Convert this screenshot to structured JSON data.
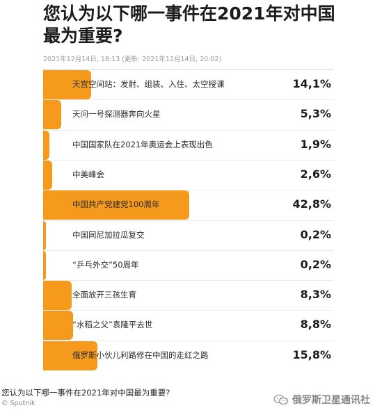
{
  "chart_data": {
    "type": "bar",
    "orientation": "horizontal",
    "title": "您认为以下哪一事件在2021年对中国最为重要?",
    "meta": "2021年12月14日, 18:13 (更新: 2021年12月14日, 20:02)",
    "categories": [
      "天宫空间站：发射、组装、入住、太空授课",
      "天问一号探测器奔向火星",
      "中国国家队在2021年奥运会上表现出色",
      "中美峰会",
      "中国共产党建党100周年",
      "中国同尼加拉瓜复交",
      "“乒乓外交”50周年",
      "全面放开三孩生育",
      "“水稻之父”袁隆平去世",
      "俄罗斯小伙儿利路修在中国的走红之路"
    ],
    "values": [
      14.1,
      5.3,
      1.9,
      2.6,
      42.8,
      0.2,
      0.2,
      8.3,
      8.8,
      15.8
    ],
    "value_labels": [
      "14,1%",
      "5,3%",
      "1,9%",
      "2,6%",
      "42,8%",
      "0,2%",
      "0,2%",
      "8,3%",
      "8,8%",
      "15,8%"
    ],
    "xlim": [
      0,
      42.8
    ],
    "bar_color": "#f59a1d",
    "grid": false,
    "legend": "none"
  },
  "caption": "您认为以下哪一事件在2021年对中国最为重要?",
  "source": "© Sputnik",
  "watermark": "俄罗斯卫星通讯社",
  "icons": {
    "watermark": "wechat-icon"
  }
}
